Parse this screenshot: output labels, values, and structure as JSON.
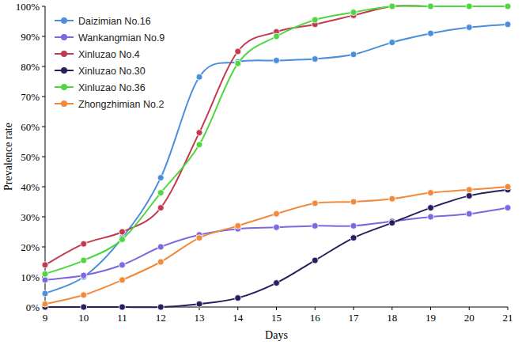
{
  "chart_data": {
    "type": "line",
    "x_label": "Days",
    "y_label": "Prevalence rate",
    "x": [
      9,
      10,
      11,
      12,
      13,
      14,
      15,
      16,
      17,
      18,
      19,
      20,
      21
    ],
    "xlim": [
      9,
      21
    ],
    "xticks": [
      9,
      10,
      11,
      12,
      13,
      14,
      15,
      16,
      17,
      18,
      19,
      20,
      21
    ],
    "ylim": [
      0,
      100
    ],
    "yticks": [
      {
        "value": 0,
        "label": "0%"
      },
      {
        "value": 10,
        "label": "10%"
      },
      {
        "value": 20,
        "label": "20%"
      },
      {
        "value": 30,
        "label": "30%"
      },
      {
        "value": 40,
        "label": "40%"
      },
      {
        "value": 50,
        "label": "50%"
      },
      {
        "value": 60,
        "label": "60%"
      },
      {
        "value": 70,
        "label": "70%"
      },
      {
        "value": 80,
        "label": "80%"
      },
      {
        "value": 90,
        "label": "90%"
      },
      {
        "value": 100,
        "label": "100%"
      }
    ],
    "grid": false,
    "legend": "upper left",
    "marker": "circle",
    "series": [
      {
        "name": "Daizimian No.16",
        "color": "#4b8fdb",
        "values": [
          4.5,
          10,
          23,
          43,
          76.5,
          81.5,
          82,
          82.5,
          84,
          88,
          91,
          93,
          94
        ]
      },
      {
        "name": "Wankangmian No.9",
        "color": "#7d68e0",
        "values": [
          9,
          10.5,
          14,
          20,
          24,
          26,
          26.5,
          27,
          27,
          28.5,
          30,
          31,
          33
        ]
      },
      {
        "name": "Xinluzao No.4",
        "color": "#c23a4e",
        "values": [
          14,
          21,
          25,
          33,
          58,
          85,
          91.5,
          94,
          97,
          100,
          100,
          100,
          100
        ]
      },
      {
        "name": "Xinluzao No.30",
        "color": "#2a1e5e",
        "values": [
          0,
          0,
          0,
          0,
          1,
          3,
          8,
          15.5,
          23,
          28,
          33,
          37,
          39
        ]
      },
      {
        "name": "Xinluzao No.36",
        "color": "#4fd640",
        "values": [
          11,
          15.5,
          22.5,
          38,
          54,
          81,
          90,
          95.5,
          98,
          100,
          100,
          100,
          100
        ]
      },
      {
        "name": "Zhongzhimian No.2",
        "color": "#f28a3c",
        "values": [
          1,
          4,
          9,
          15,
          23,
          27,
          31,
          34.5,
          35,
          36,
          38,
          39,
          40
        ]
      }
    ]
  }
}
